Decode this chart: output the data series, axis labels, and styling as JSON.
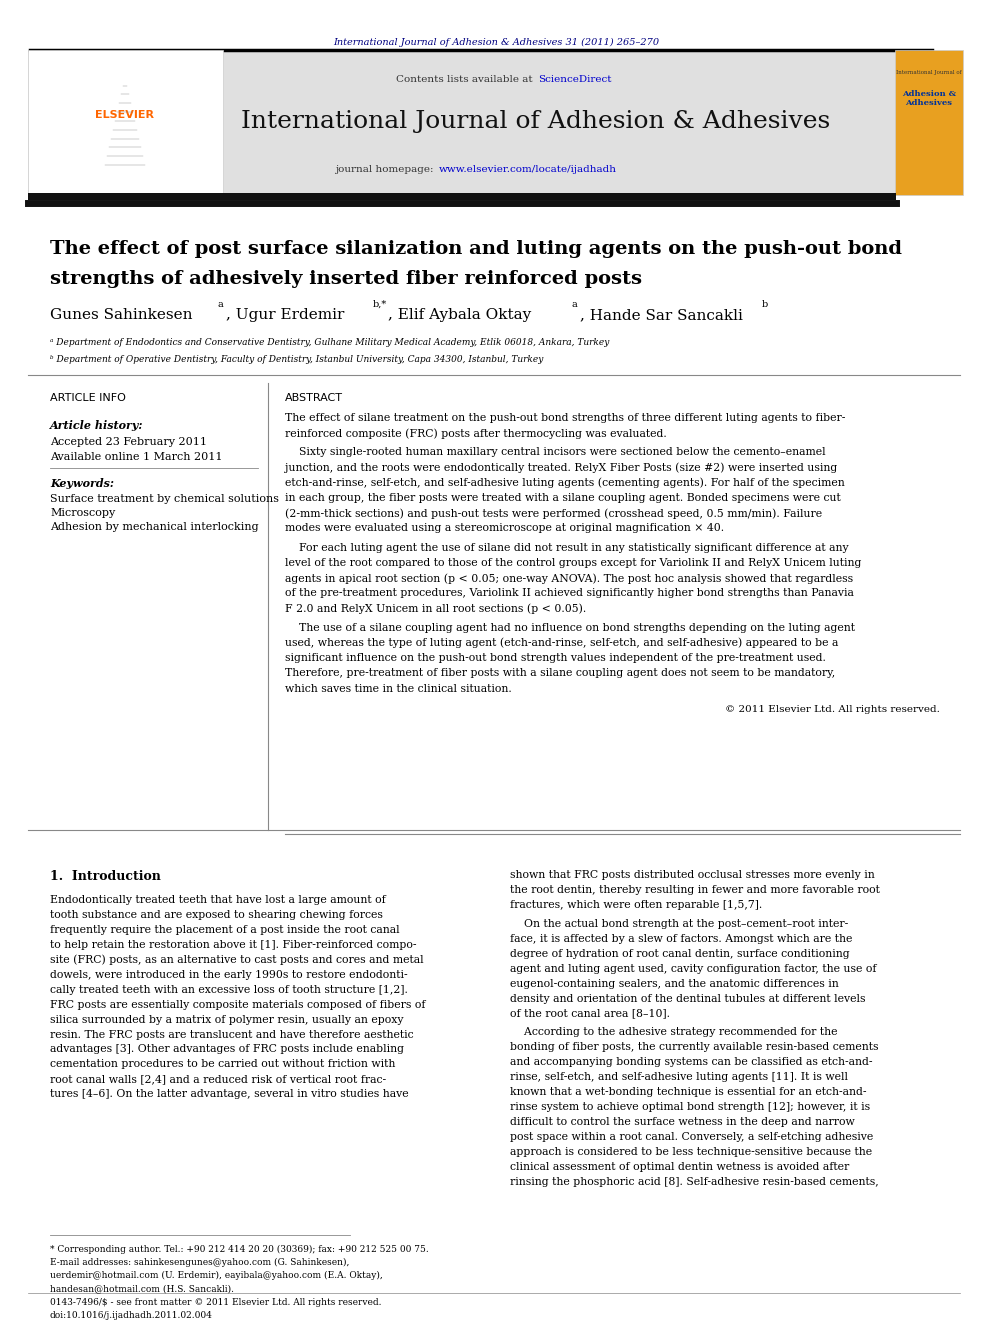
{
  "page_width": 9.92,
  "page_height": 13.23,
  "background_color": "#ffffff",
  "journal_ref_text": "International Journal of Adhesion & Adhesives 31 (2011) 265–270",
  "journal_ref_color": "#000080",
  "header_bg_color": "#e8e8e8",
  "header_journal_name": "International Journal of Adhesion & Adhesives",
  "contents_text": "Contents lists available at ",
  "sciencedirect_text": "ScienceDirect",
  "sciencedirect_color": "#0000cc",
  "journal_homepage_text": "journal homepage: www.elsevier.com/locate/ijadhadh",
  "journal_homepage_color_prefix": "#000000",
  "journal_homepage_color_url": "#0000cc",
  "article_title_line1": "The effect of post surface silanization and luting agents on the push-out bond",
  "article_title_line2": "strengths of adhesively inserted fiber reinforced posts",
  "authors": "Gunes Sahinkesenà, Ugur Erdemirᵇ*, Elif Aybala Oktayà, Hande Sar Sancakliᵇ",
  "authors_display": "Gunes Sahinkesen",
  "affil_a": "ᵃ Department of Endodontics and Conservative Dentistry, Gulhane Military Medical Academy, Etlik 06018, Ankara, Turkey",
  "affil_b": "ᵇ Department of Operative Dentistry, Faculty of Dentistry, Istanbul University, Capa 34300, Istanbul, Turkey",
  "article_info_title": "ARTICLE INFO",
  "article_history_title": "Article history:",
  "accepted_text": "Accepted 23 February 2011",
  "available_text": "Available online 1 March 2011",
  "keywords_title": "Keywords:",
  "kw1": "Surface treatment by chemical solutions",
  "kw2": "Microscopy",
  "kw3": "Adhesion by mechanical interlocking",
  "abstract_title": "ABSTRACT",
  "abstract_p1": "The effect of silane treatment on the push-out bond strengths of three different luting agents to fiber-\nreinforced composite (FRC) posts after thermocycling was evaluated.",
  "abstract_p2": "    Sixty single-rooted human maxillary central incisors were sectioned below the cemento–enamel\njunction, and the roots were endodontically treated. RelyX Fiber Posts (size #2) were inserted using\netch-and-rinse, self-etch, and self-adhesive luting agents (cementing agents). For half of the specimen\nin each group, the fiber posts were treated with a silane coupling agent. Bonded specimens were cut\n(2-mm-thick sections) and push-out tests were performed (crosshead speed, 0.5 mm/min). Failure\nmodes were evaluated using a stereomicroscope at original magnification × 40.",
  "abstract_p3": "    For each luting agent the use of silane did not result in any statistically significant difference at any\nlevel of the root compared to those of the control groups except for Variolink II and RelyX Unicem luting\nagents in apical root section (p < 0.05; one-way ANOVA). The post hoc analysis showed that regardless\nof the pre-treatment procedures, Variolink II achieved significantly higher bond strengths than Panavia\nF 2.0 and RelyX Unicem in all root sections (p < 0.05).",
  "abstract_p4": "    The use of a silane coupling agent had no influence on bond strengths depending on the luting agent\nused, whereas the type of luting agent (etch-and-rinse, self-etch, and self-adhesive) appeared to be a\nsignificant influence on the push-out bond strength values independent of the pre-treatment used.\nTherefore, pre-treatment of fiber posts with a silane coupling agent does not seem to be mandatory,\nwhich saves time in the clinical situation.",
  "copyright_text": "© 2011 Elsevier Ltd. All rights reserved.",
  "section1_title": "1.  Introduction",
  "intro_col1_p1": "Endodontically treated teeth that have lost a large amount of\ntooth substance and are exposed to shearing chewing forces\nfrequently require the placement of a post inside the root canal\nto help retain the restoration above it [1]. Fiber-reinforced compo-\nsite (FRC) posts, as an alternative to cast posts and cores and metal\ndowels, were introduced in the early 1990s to restore endodonti-\ncally treated teeth with an excessive loss of tooth structure [1,2].\nFRC posts are essentially composite materials composed of fibers of\nsilica surrounded by a matrix of polymer resin, usually an epoxy\nresin. The FRC posts are translucent and have therefore aesthetic\nadvantages [3]. Other advantages of FRC posts include enabling\ncementation procedures to be carried out without friction with\nroot canal walls [2,4] and a reduced risk of vertical root frac-\ntures [4–6]. On the latter advantage, several in vitro studies have",
  "intro_col2_p1": "shown that FRC posts distributed occlusal stresses more evenly in\nthe root dentin, thereby resulting in fewer and more favorable root\nfractures, which were often reparable [1,5,7].",
  "intro_col2_p2": "    On the actual bond strength at the post–cement–root inter-\nface, it is affected by a slew of factors. Amongst which are the\ndegree of hydration of root canal dentin, surface conditioning\nagent and luting agent used, cavity configuration factor, the use of\neugenol-containing sealers, and the anatomic differences in\ndensity and orientation of the dentinal tubules at different levels\nof the root canal area [8–10].",
  "intro_col2_p3": "    According to the adhesive strategy recommended for the\nbonding of fiber posts, the currently available resin-based cements\nand accompanying bonding systems can be classified as etch-and-\nrinse, self-etch, and self-adhesive luting agents [11]. It is well\nknown that a wet-bonding technique is essential for an etch-and-\nrinse system to achieve optimal bond strength [12]; however, it is\ndifficult to control the surface wetness in the deep and narrow\npost space within a root canal. Conversely, a self-etching adhesive\napproach is considered to be less technique-sensitive because the\nclinical assessment of optimal dentin wetness is avoided after\nrinsing the phosphoric acid [8]. Self-adhesive resin-based cements,",
  "footnote_star": "* Corresponding author. Tel.: +90 212 414 20 20 (30369); fax: +90 212 525 00 75.",
  "footnote_email": "E-mail addresses: sahinkesengunes@yahoo.com (G. Sahinkesen),\nuerdemir@hotmail.com (U. Erdemir), eayibala@yahoo.com (E.A. Oktay),\nhandesan@hotmail.com (H.S. Sancakli).",
  "footer_issn": "0143-7496/$ - see front matter © 2011 Elsevier Ltd. All rights reserved.",
  "footer_doi": "doi:10.1016/j.ijadhadh.2011.02.004",
  "top_border_color": "#000000",
  "mid_border_color": "#000000",
  "header_border_color": "#000000"
}
